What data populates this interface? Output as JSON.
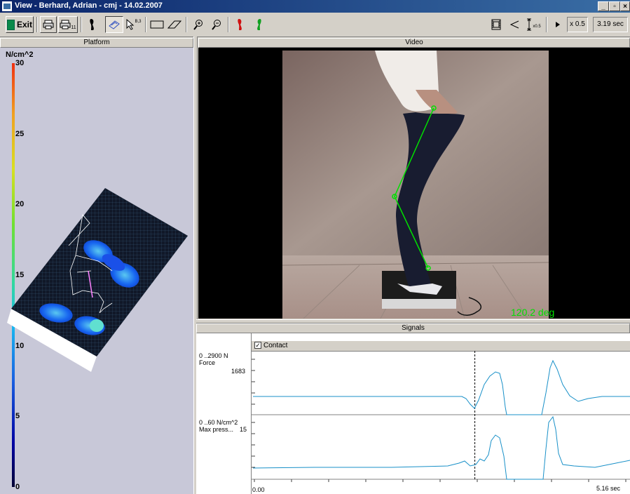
{
  "window": {
    "title": "View - Berhard, Adrian - cmj - 14.02.2007"
  },
  "toolbar": {
    "exit_label": "Exit",
    "print2_sub": "11",
    "cursor_sub": "B,3",
    "marker_label": "x0.5",
    "speed_label": "x 0.5",
    "time_label": "3.19 sec"
  },
  "panels": {
    "platform_title": "Platform",
    "video_title": "Video",
    "signals_title": "Signals"
  },
  "platform": {
    "unit": "N/cm^2",
    "scale": [
      {
        "label": "30",
        "value": 30
      },
      {
        "label": "25",
        "value": 25
      },
      {
        "label": "20",
        "value": 20
      },
      {
        "label": "15",
        "value": 15
      },
      {
        "label": "10",
        "value": 10
      },
      {
        "label": "5",
        "value": 5
      },
      {
        "label": "0",
        "value": 0
      }
    ]
  },
  "video": {
    "angle_readout": "120.2 deg",
    "overlay_color": "#00e000"
  },
  "signals": {
    "contact_label": "Contact",
    "channel1": {
      "range": "0 ..2900 N",
      "name": "Force",
      "value": "1683"
    },
    "channel2": {
      "range": "0 ..60 N/cm^2",
      "name": "Max press...",
      "value": "15"
    },
    "x_start": "0.00",
    "x_end": "5.16 sec",
    "trace_color": "#1890c8",
    "cursor_time_fraction": 0.59
  }
}
